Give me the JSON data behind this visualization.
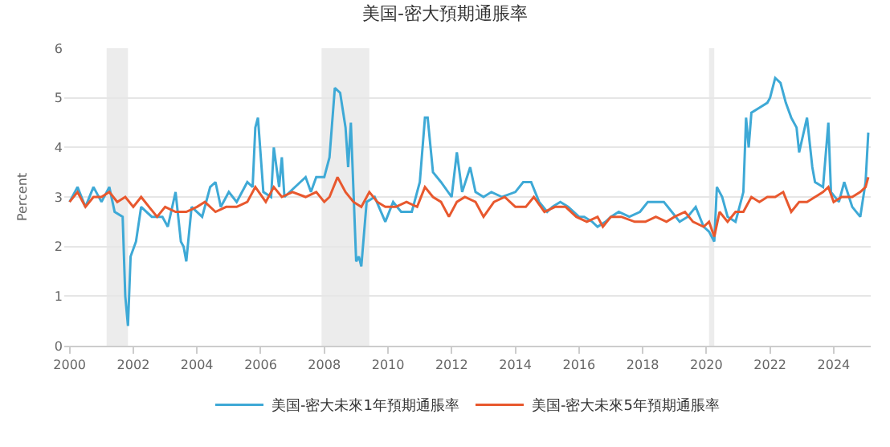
{
  "chart_data": {
    "type": "line",
    "title": "美国-密大預期通脹率",
    "ylabel": "Percent",
    "xlim": [
      "1999-11",
      "2025-03"
    ],
    "xticks": [
      "2000",
      "2002",
      "2004",
      "2006",
      "2008",
      "2010",
      "2012",
      "2014",
      "2016",
      "2018",
      "2020",
      "2022",
      "2024"
    ],
    "ylim": [
      0,
      6
    ],
    "yticks": [
      0,
      1,
      2,
      3,
      4,
      5,
      6
    ],
    "grid": "y",
    "legend": "bottom",
    "marker": "none",
    "line_style": "solid",
    "bands": [
      {
        "axis": "x",
        "from": "2001-03",
        "to": "2001-11",
        "color": "#ececec"
      },
      {
        "axis": "x",
        "from": "2007-12",
        "to": "2009-06",
        "color": "#ececec"
      },
      {
        "axis": "x",
        "from": "2020-02",
        "to": "2020-04",
        "color": "#ececec"
      }
    ],
    "series": [
      {
        "name": "美国-密大未來1年預期通脹率",
        "color": "#3ea9d6",
        "x": [
          "2000-01",
          "2000-04",
          "2000-07",
          "2000-10",
          "2001-01",
          "2001-04",
          "2001-06",
          "2001-09",
          "2001-10",
          "2001-11",
          "2001-12",
          "2002-02",
          "2002-04",
          "2002-08",
          "2002-12",
          "2003-02",
          "2003-05",
          "2003-07",
          "2003-08",
          "2003-09",
          "2003-11",
          "2004-03",
          "2004-06",
          "2004-08",
          "2004-10",
          "2005-01",
          "2005-04",
          "2005-08",
          "2005-10",
          "2005-11",
          "2005-12",
          "2006-02",
          "2006-05",
          "2006-06",
          "2006-08",
          "2006-09",
          "2006-10",
          "2007-04",
          "2007-06",
          "2007-08",
          "2007-10",
          "2008-01",
          "2008-03",
          "2008-05",
          "2008-07",
          "2008-09",
          "2008-10",
          "2008-11",
          "2009-01",
          "2009-02",
          "2009-03",
          "2009-05",
          "2009-08",
          "2009-12",
          "2010-03",
          "2010-06",
          "2010-10",
          "2011-01",
          "2011-03",
          "2011-04",
          "2011-06",
          "2011-09",
          "2012-01",
          "2012-03",
          "2012-05",
          "2012-08",
          "2012-10",
          "2013-01",
          "2013-04",
          "2013-08",
          "2014-01",
          "2014-04",
          "2014-07",
          "2014-10",
          "2015-01",
          "2015-03",
          "2015-06",
          "2015-09",
          "2016-01",
          "2016-03",
          "2016-06",
          "2016-08",
          "2016-11",
          "2017-01",
          "2017-04",
          "2017-08",
          "2017-12",
          "2018-03",
          "2018-06",
          "2018-09",
          "2018-12",
          "2019-03",
          "2019-06",
          "2019-09",
          "2019-12",
          "2020-02",
          "2020-04",
          "2020-05",
          "2020-07",
          "2020-09",
          "2020-12",
          "2021-03",
          "2021-04",
          "2021-05",
          "2021-06",
          "2021-09",
          "2021-12",
          "2022-01",
          "2022-03",
          "2022-05",
          "2022-07",
          "2022-09",
          "2022-11",
          "2022-12",
          "2023-03",
          "2023-05",
          "2023-06",
          "2023-09",
          "2023-11",
          "2023-12",
          "2024-03",
          "2024-05",
          "2024-08",
          "2024-11",
          "2025-01",
          "2025-02"
        ],
        "values": [
          2.9,
          3.2,
          2.8,
          3.2,
          2.9,
          3.2,
          2.7,
          2.6,
          1.0,
          0.4,
          1.8,
          2.1,
          2.8,
          2.6,
          2.6,
          2.4,
          3.1,
          2.1,
          2.0,
          1.7,
          2.8,
          2.6,
          3.2,
          3.3,
          2.8,
          3.1,
          2.9,
          3.3,
          3.2,
          4.4,
          4.6,
          3.1,
          3.0,
          4.0,
          3.2,
          3.8,
          3.0,
          3.3,
          3.4,
          3.1,
          3.4,
          3.4,
          3.8,
          5.2,
          5.1,
          4.4,
          3.6,
          4.5,
          1.7,
          1.8,
          1.6,
          2.9,
          3.0,
          2.5,
          2.9,
          2.7,
          2.7,
          3.3,
          4.6,
          4.6,
          3.5,
          3.3,
          3.0,
          3.9,
          3.1,
          3.6,
          3.1,
          3.0,
          3.1,
          3.0,
          3.1,
          3.3,
          3.3,
          2.9,
          2.7,
          2.8,
          2.9,
          2.8,
          2.6,
          2.6,
          2.5,
          2.4,
          2.5,
          2.6,
          2.7,
          2.6,
          2.7,
          2.9,
          2.9,
          2.9,
          2.7,
          2.5,
          2.6,
          2.8,
          2.4,
          2.3,
          2.1,
          3.2,
          3.0,
          2.6,
          2.5,
          3.1,
          4.6,
          4.0,
          4.7,
          4.8,
          4.9,
          5.0,
          5.4,
          5.3,
          4.9,
          4.6,
          4.4,
          3.9,
          4.6,
          3.6,
          3.3,
          3.2,
          4.5,
          3.1,
          2.9,
          3.3,
          2.8,
          2.6,
          3.3,
          4.3
        ]
      },
      {
        "name": "美国-密大未來5年預期通脹率",
        "color": "#e8582e",
        "x": [
          "2000-01",
          "2000-04",
          "2000-07",
          "2000-10",
          "2001-01",
          "2001-04",
          "2001-07",
          "2001-10",
          "2002-01",
          "2002-04",
          "2002-07",
          "2002-10",
          "2003-01",
          "2003-05",
          "2003-09",
          "2004-01",
          "2004-04",
          "2004-08",
          "2004-12",
          "2005-04",
          "2005-08",
          "2005-11",
          "2006-03",
          "2006-06",
          "2006-09",
          "2007-01",
          "2007-06",
          "2007-10",
          "2008-01",
          "2008-03",
          "2008-06",
          "2008-09",
          "2008-12",
          "2009-03",
          "2009-06",
          "2009-09",
          "2009-12",
          "2010-04",
          "2010-08",
          "2010-12",
          "2011-03",
          "2011-06",
          "2011-09",
          "2011-12",
          "2012-03",
          "2012-06",
          "2012-10",
          "2013-01",
          "2013-05",
          "2013-09",
          "2014-01",
          "2014-05",
          "2014-08",
          "2014-12",
          "2015-04",
          "2015-08",
          "2015-12",
          "2016-04",
          "2016-08",
          "2016-10",
          "2017-01",
          "2017-05",
          "2017-10",
          "2018-02",
          "2018-06",
          "2018-10",
          "2019-01",
          "2019-05",
          "2019-08",
          "2019-12",
          "2020-02",
          "2020-04",
          "2020-06",
          "2020-09",
          "2020-12",
          "2021-03",
          "2021-06",
          "2021-09",
          "2021-12",
          "2022-03",
          "2022-06",
          "2022-09",
          "2022-12",
          "2023-03",
          "2023-06",
          "2023-09",
          "2023-11",
          "2024-01",
          "2024-04",
          "2024-08",
          "2024-11",
          "2025-01",
          "2025-02"
        ],
        "values": [
          2.9,
          3.1,
          2.8,
          3.0,
          3.0,
          3.1,
          2.9,
          3.0,
          2.8,
          3.0,
          2.8,
          2.6,
          2.8,
          2.7,
          2.7,
          2.8,
          2.9,
          2.7,
          2.8,
          2.8,
          2.9,
          3.2,
          2.9,
          3.2,
          3.0,
          3.1,
          3.0,
          3.1,
          2.9,
          3.0,
          3.4,
          3.1,
          2.9,
          2.8,
          3.1,
          2.9,
          2.8,
          2.8,
          2.9,
          2.8,
          3.2,
          3.0,
          2.9,
          2.6,
          2.9,
          3.0,
          2.9,
          2.6,
          2.9,
          3.0,
          2.8,
          2.8,
          3.0,
          2.7,
          2.8,
          2.8,
          2.6,
          2.5,
          2.6,
          2.4,
          2.6,
          2.6,
          2.5,
          2.5,
          2.6,
          2.5,
          2.6,
          2.7,
          2.5,
          2.4,
          2.5,
          2.2,
          2.7,
          2.5,
          2.7,
          2.7,
          3.0,
          2.9,
          3.0,
          3.0,
          3.1,
          2.7,
          2.9,
          2.9,
          3.0,
          3.1,
          3.2,
          2.9,
          3.0,
          3.0,
          3.1,
          3.2,
          3.4
        ]
      }
    ]
  }
}
